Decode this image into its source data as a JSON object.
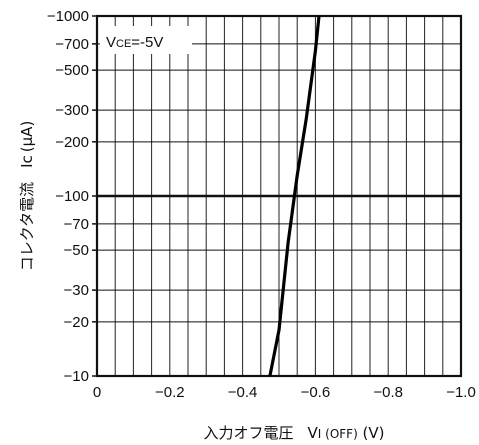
{
  "chart_data": {
    "type": "line",
    "title": "",
    "xlabel": "入力オフ電圧",
    "xlabel_symbol": "V",
    "xlabel_subscript": "I (OFF)",
    "xlabel_unit": " (V)",
    "ylabel": "コレクタ電流",
    "ylabel_symbol": "Ic",
    "ylabel_unit": "(μA)",
    "annotation_main": "V",
    "annotation_sub": "CE",
    "annotation_value": "=-5V",
    "xlim": [
      0,
      -1.0
    ],
    "ylim": [
      -10,
      -1000
    ],
    "yscale": "log",
    "grid": true,
    "x_ticks": [
      0,
      -0.2,
      -0.4,
      -0.6,
      -0.8,
      -1.0
    ],
    "x_tick_labels": [
      "0",
      "−0.2",
      "−0.4",
      "−0.6",
      "−0.8",
      "−1.0"
    ],
    "y_ticks": [
      -10,
      -20,
      -30,
      -50,
      -70,
      -100,
      -200,
      -300,
      -500,
      -700,
      -1000
    ],
    "y_tick_labels": [
      "−10",
      "−20",
      "−30",
      "−50",
      "−70",
      "−100",
      "−200",
      "−300",
      "−500",
      "−700",
      "−1000"
    ],
    "series": [
      {
        "x": [
          -0.475,
          -0.5,
          -0.525,
          -0.55,
          -0.575,
          -0.6,
          -0.61
        ],
        "y": [
          -10,
          -18,
          -55,
          -130,
          -270,
          -640,
          -1000
        ]
      }
    ]
  }
}
